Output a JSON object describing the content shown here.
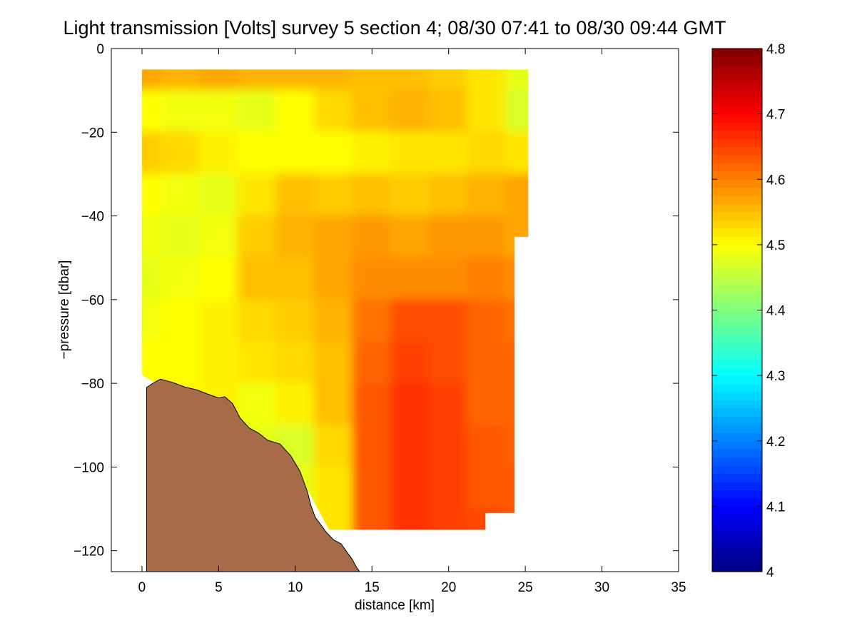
{
  "chart_data": {
    "type": "heatmap",
    "title": "Light transmission [Volts] survey 5 section 4; 08/30 07:41 to 08/30 09:44 GMT",
    "xlabel": "distance [km]",
    "ylabel": "−pressure [dbar]",
    "xlim": [
      -2,
      35
    ],
    "ylim": [
      -125,
      0
    ],
    "x_ticks": [
      0,
      5,
      10,
      15,
      20,
      25,
      30,
      35
    ],
    "x_tick_labels": [
      "0",
      "5",
      "10",
      "15",
      "20",
      "25",
      "30",
      "35"
    ],
    "y_ticks": [
      0,
      -20,
      -40,
      -60,
      -80,
      -100,
      -120
    ],
    "y_tick_labels": [
      "0",
      "−20",
      "−40",
      "−60",
      "−80",
      "−100",
      "−120"
    ],
    "colorbar": {
      "colormap": "jet",
      "range": [
        4.0,
        4.8
      ],
      "ticks": [
        4,
        4.1,
        4.2,
        4.3,
        4.4,
        4.5,
        4.6,
        4.7,
        4.8
      ],
      "tick_labels": [
        "4",
        "4.1",
        "4.2",
        "4.3",
        "4.4",
        "4.5",
        "4.6",
        "4.7",
        "4.8"
      ]
    },
    "field": {
      "distance_km": [
        0,
        2.5,
        5,
        7.5,
        10,
        12.5,
        15,
        17.5,
        20,
        22.5,
        25
      ],
      "pressure_dbar": [
        -5,
        -15,
        -25,
        -35,
        -45,
        -55,
        -65,
        -75,
        -85,
        -95,
        -105,
        -115
      ],
      "values": [
        [
          4.57,
          4.56,
          4.57,
          4.56,
          4.56,
          4.56,
          4.55,
          4.55,
          4.54,
          4.52,
          4.48
        ],
        [
          4.5,
          4.49,
          4.49,
          4.48,
          4.5,
          4.53,
          4.55,
          4.56,
          4.55,
          4.52,
          4.47
        ],
        [
          4.54,
          4.53,
          4.51,
          4.5,
          4.5,
          4.5,
          4.51,
          4.52,
          4.52,
          4.53,
          4.52
        ],
        [
          4.5,
          4.49,
          4.48,
          4.52,
          4.55,
          4.54,
          4.55,
          4.54,
          4.55,
          4.56,
          4.57
        ],
        [
          4.49,
          4.48,
          4.49,
          4.54,
          4.56,
          4.57,
          4.58,
          4.57,
          4.58,
          4.58,
          null
        ],
        [
          4.48,
          4.49,
          4.5,
          4.55,
          4.55,
          4.57,
          4.59,
          4.59,
          4.59,
          4.6,
          null
        ],
        [
          4.49,
          4.5,
          4.51,
          4.53,
          4.54,
          4.56,
          4.61,
          4.64,
          4.64,
          4.62,
          null
        ],
        [
          4.5,
          4.5,
          4.51,
          4.52,
          4.53,
          4.55,
          4.62,
          4.65,
          4.64,
          4.62,
          null
        ],
        [
          null,
          null,
          4.51,
          4.49,
          4.51,
          4.55,
          4.63,
          4.66,
          4.65,
          4.62,
          null
        ],
        [
          null,
          null,
          null,
          4.48,
          4.47,
          4.53,
          4.63,
          4.66,
          4.65,
          4.63,
          null
        ],
        [
          null,
          null,
          null,
          null,
          4.48,
          4.52,
          4.63,
          4.66,
          4.65,
          4.63,
          null
        ],
        [
          null,
          null,
          null,
          null,
          null,
          4.52,
          4.63,
          4.66,
          4.65,
          null,
          null
        ]
      ],
      "data_extent": [
        [
          0,
          -5
        ],
        [
          25.2,
          -5
        ],
        [
          25.2,
          -45
        ],
        [
          24.3,
          -45
        ],
        [
          24.3,
          -111
        ],
        [
          22.4,
          -111
        ],
        [
          22.4,
          -115
        ],
        [
          12.2,
          -115
        ],
        [
          10,
          -100
        ],
        [
          0,
          -78
        ]
      ]
    },
    "seafloor": {
      "color": "#a86b48",
      "profile": [
        [
          0.3,
          -81
        ],
        [
          0.7,
          -80
        ],
        [
          1.2,
          -79
        ],
        [
          2.0,
          -79.8
        ],
        [
          2.8,
          -80.9
        ],
        [
          3.6,
          -81.6
        ],
        [
          4.3,
          -82.6
        ],
        [
          5.0,
          -83.5
        ],
        [
          5.4,
          -83.2
        ],
        [
          5.9,
          -84.8
        ],
        [
          6.4,
          -88.3
        ],
        [
          7.0,
          -90.7
        ],
        [
          7.6,
          -91.9
        ],
        [
          8.2,
          -93.6
        ],
        [
          9.0,
          -94.5
        ],
        [
          9.7,
          -97.3
        ],
        [
          10.3,
          -101
        ],
        [
          10.8,
          -106
        ],
        [
          11.0,
          -109
        ],
        [
          11.3,
          -112
        ],
        [
          11.6,
          -113.5
        ],
        [
          12.0,
          -115.5
        ],
        [
          12.5,
          -117.4
        ],
        [
          13.0,
          -118.4
        ],
        [
          13.3,
          -120
        ],
        [
          13.7,
          -122
        ],
        [
          14.0,
          -124
        ],
        [
          14.2,
          -125
        ]
      ]
    }
  }
}
